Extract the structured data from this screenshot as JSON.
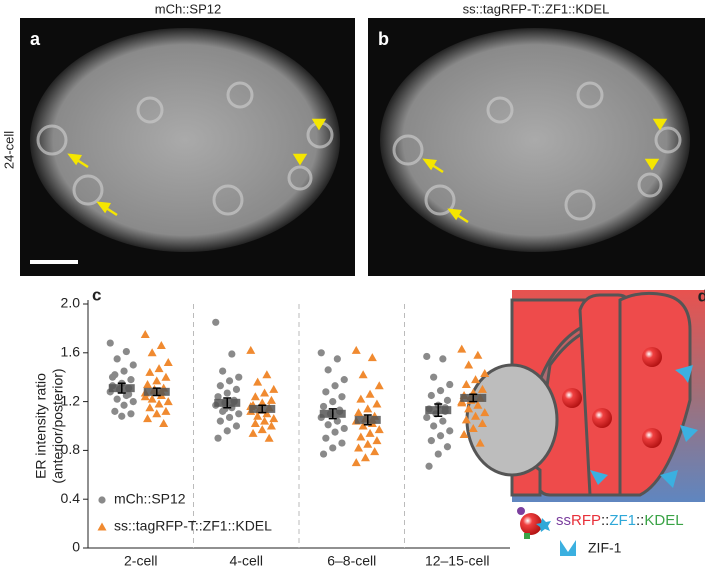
{
  "panels": [
    {
      "label": "a",
      "title": "mCh::SP12"
    },
    {
      "label": "b",
      "title": "ss::tagRFP-T::ZF1::KDEL"
    }
  ],
  "row_label": "24-cell",
  "chart_data": {
    "type": "strip",
    "panel_label": "c",
    "y_label": [
      "ER intensity ratio",
      "(anterior/posterior)"
    ],
    "categories": [
      "2-cell",
      "4-cell",
      "6–8-cell",
      "12–15-cell"
    ],
    "ylim": [
      0,
      2
    ],
    "yticks": [
      0,
      0.4,
      0.8,
      1.2,
      1.6,
      {
        "value": 2,
        "label": "2.0"
      }
    ],
    "series": [
      {
        "name": "mCh::SP12",
        "color": "#8a8a8a",
        "marker": "circle",
        "values": [
          [
            1.68,
            1.61,
            1.55,
            1.5,
            1.45,
            1.42,
            1.38,
            1.35,
            1.33,
            1.31,
            1.3,
            1.28,
            1.25,
            1.22,
            1.2,
            1.17,
            1.12,
            1.1,
            1.08,
            1.4,
            1.26
          ],
          [
            1.85,
            1.59,
            1.45,
            1.4,
            1.37,
            1.33,
            1.3,
            1.27,
            1.24,
            1.21,
            1.19,
            1.17,
            1.15,
            1.12,
            1.1,
            1.07,
            1.04,
            1,
            0.96,
            0.9,
            1.2,
            1.14
          ],
          [
            1.6,
            1.55,
            1.46,
            1.38,
            1.33,
            1.28,
            1.24,
            1.2,
            1.16,
            1.13,
            1.1,
            1.07,
            1.04,
            1.01,
            0.98,
            0.95,
            0.9,
            0.86,
            0.82,
            0.77,
            1.12
          ],
          [
            1.57,
            1.55,
            1.4,
            1.34,
            1.29,
            1.25,
            1.21,
            1.17,
            1.14,
            1.12,
            1.1,
            1.07,
            1.04,
            1,
            0.96,
            0.92,
            0.88,
            0.83,
            0.77,
            0.67,
            1.15
          ]
        ],
        "means": [
          1.31,
          1.19,
          1.1,
          1.13
        ],
        "errors": [
          0.04,
          0.04,
          0.04,
          0.05
        ]
      },
      {
        "name": "ss::tagRFP-T::ZF1::KDEL",
        "color": "#f08a30",
        "marker": "triangle",
        "values": [
          [
            1.75,
            1.66,
            1.6,
            1.52,
            1.47,
            1.44,
            1.4,
            1.37,
            1.34,
            1.31,
            1.29,
            1.27,
            1.25,
            1.22,
            1.2,
            1.18,
            1.15,
            1.12,
            1.1,
            1.06,
            1.02,
            1.3,
            1.24,
            1.28
          ],
          [
            1.62,
            1.42,
            1.36,
            1.3,
            1.27,
            1.24,
            1.21,
            1.19,
            1.17,
            1.15,
            1.13,
            1.12,
            1.1,
            1.08,
            1.06,
            1.04,
            1.02,
            1,
            0.97,
            0.94,
            0.9,
            1.14,
            1.16
          ],
          [
            1.62,
            1.56,
            1.42,
            1.33,
            1.26,
            1.22,
            1.18,
            1.14,
            1.11,
            1.08,
            1.06,
            1.04,
            1.02,
            1,
            0.97,
            0.94,
            0.91,
            0.88,
            0.85,
            0.82,
            0.79,
            0.74,
            0.7,
            1.05
          ],
          [
            1.63,
            1.58,
            1.5,
            1.43,
            1.38,
            1.34,
            1.3,
            1.27,
            1.25,
            1.23,
            1.21,
            1.19,
            1.17,
            1.14,
            1.11,
            1.08,
            1.05,
            1.02,
            0.98,
            0.93,
            0.86,
            1.24,
            1.2
          ]
        ],
        "means": [
          1.28,
          1.14,
          1.05,
          1.23
        ],
        "errors": [
          0.03,
          0.03,
          0.04,
          0.03
        ]
      }
    ]
  },
  "diagram": {
    "label": "d",
    "legend": [
      {
        "text": "ss",
        "color": "#7b3f9e"
      },
      {
        "text": "RFP",
        "color": "#e8303a"
      },
      {
        "text": "::",
        "color": "#222222"
      },
      {
        "text": "ZF1",
        "color": "#2fa8d8"
      },
      {
        "text": "::",
        "color": "#222222"
      },
      {
        "text": "KDEL",
        "color": "#3aa346"
      }
    ],
    "zif": "ZIF-1"
  }
}
